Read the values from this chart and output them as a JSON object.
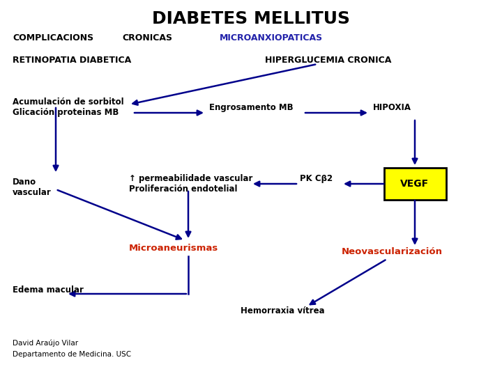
{
  "title": "DIABETES MELLITUS",
  "title_fontsize": 18,
  "bg_color": "#ffffff",
  "arrow_color": "#00008B",
  "text_color_black": "#000000",
  "text_color_blue": "#2222AA",
  "text_color_red": "#CC2200",
  "vegf_box_color": "#FFFF00",
  "vegf_box_edge": "#000000",
  "footer1": "David Araújo Vilar",
  "footer2": "Departamento de Medicina. USC"
}
